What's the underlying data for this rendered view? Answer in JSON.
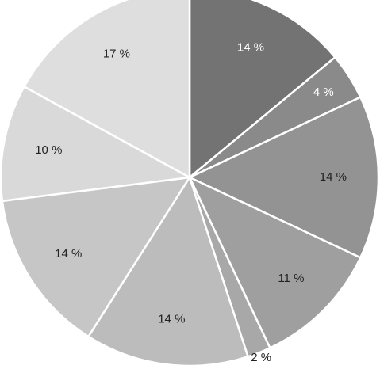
{
  "chart_data": {
    "type": "pie",
    "values": [
      14,
      4,
      14,
      11,
      2,
      14,
      14,
      10,
      17
    ],
    "value_labels": [
      "14 %",
      "4 %",
      "14 %",
      "11 %",
      "2 %",
      "14 %",
      "14 %",
      "10 %",
      "17 %"
    ],
    "colors": [
      "#737373",
      "#8a8a8a",
      "#939393",
      "#9f9f9f",
      "#a8a8a8",
      "#bcbcbc",
      "#c6c6c6",
      "#d9d9d9",
      "#dedede"
    ]
  }
}
